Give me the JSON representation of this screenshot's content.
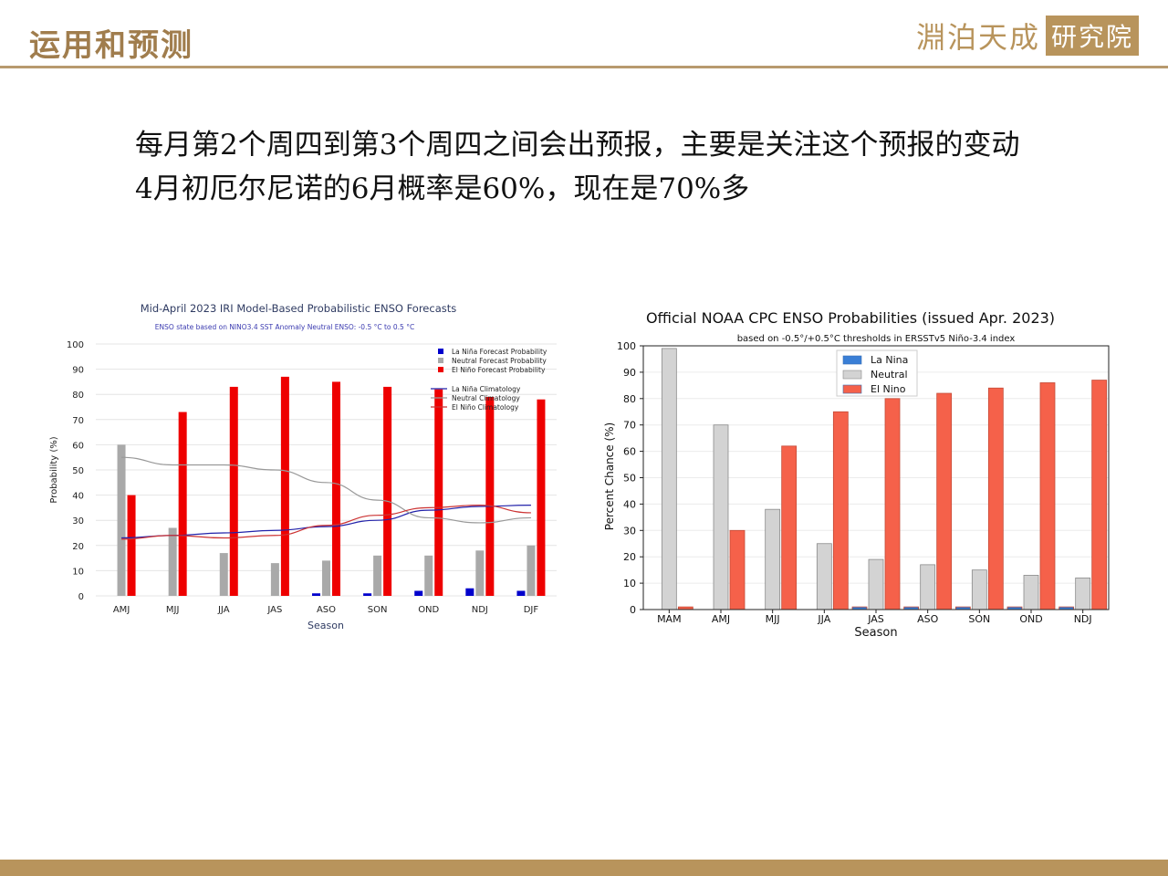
{
  "slide": {
    "title": "运用和预测",
    "logo_text": "淵泊天成",
    "logo_box": "研究院",
    "paragraph1": "每月第2个周四到第3个周四之间会出预报，主要是关注这个预报的变动",
    "paragraph2": "4月初厄尔尼诺的6月概率是60%，现在是70%多",
    "colors": {
      "accent": "#b8945c",
      "title": "#a07d4d"
    }
  },
  "chart_data": [
    {
      "type": "bar",
      "title": "Mid-April 2023 IRI Model-Based Probabilistic ENSO Forecasts",
      "subtitle": "ENSO state based on NINO3.4 SST Anomaly Neutral ENSO: -0.5 °C to 0.5 °C",
      "xlabel": "Season",
      "ylabel": "Probability (%)",
      "ylim": [
        0,
        100
      ],
      "yticks": [
        "0",
        "10",
        "20",
        "30",
        "40",
        "50",
        "60",
        "70",
        "80",
        "90",
        "100"
      ],
      "categories": [
        "AMJ",
        "MJJ",
        "JJA",
        "JAS",
        "ASO",
        "SON",
        "OND",
        "NDJ",
        "DJF"
      ],
      "grid": true,
      "legend_position": "top-right",
      "series": [
        {
          "name": "La Niña Forecast Probability",
          "color": "#0000cc",
          "values": [
            0,
            0,
            0,
            0,
            1,
            1,
            2,
            3,
            2
          ]
        },
        {
          "name": "Neutral Forecast Probability",
          "color": "#a9a9a9",
          "values": [
            60,
            27,
            17,
            13,
            14,
            16,
            16,
            18,
            20
          ]
        },
        {
          "name": "El Niño Forecast Probability",
          "color": "#ee0000",
          "values": [
            40,
            73,
            83,
            87,
            85,
            83,
            82,
            79,
            78
          ]
        }
      ],
      "lines": [
        {
          "name": "La Niña Climatology",
          "color": "#2222aa",
          "values": [
            23,
            24,
            25,
            26,
            27.5,
            30,
            34,
            35.5,
            36
          ]
        },
        {
          "name": "Neutral Climatology",
          "color": "#999999",
          "values": [
            55,
            52,
            52,
            50,
            45,
            38,
            31,
            29,
            31
          ]
        },
        {
          "name": "El Niño Climatology",
          "color": "#cc3333",
          "values": [
            22.5,
            24,
            23,
            24,
            28,
            32,
            35,
            36,
            33
          ]
        }
      ]
    },
    {
      "type": "bar",
      "title": "Official NOAA CPC ENSO Probabilities (issued Apr. 2023)",
      "subtitle": "based on -0.5°/+0.5°C thresholds in ERSSTv5 Niño-3.4 index",
      "xlabel": "Season",
      "ylabel": "Percent Chance (%)",
      "ylim": [
        0,
        100
      ],
      "yticks": [
        "0",
        "10",
        "20",
        "30",
        "40",
        "50",
        "60",
        "70",
        "80",
        "90",
        "100"
      ],
      "categories": [
        "MAM",
        "AMJ",
        "MJJ",
        "JJA",
        "JAS",
        "ASO",
        "SON",
        "OND",
        "NDJ"
      ],
      "grid": true,
      "legend_position": "top-center",
      "series": [
        {
          "name": "La Nina",
          "color": "#3a7fd6",
          "values": [
            0,
            0,
            0,
            0,
            1,
            1,
            1,
            1,
            1
          ]
        },
        {
          "name": "Neutral",
          "color": "#d3d3d3",
          "values": [
            99,
            70,
            38,
            25,
            19,
            17,
            15,
            13,
            12
          ]
        },
        {
          "name": "El Nino",
          "color": "#f5614a",
          "values": [
            1,
            30,
            62,
            75,
            80,
            82,
            84,
            86,
            87
          ]
        }
      ]
    }
  ]
}
